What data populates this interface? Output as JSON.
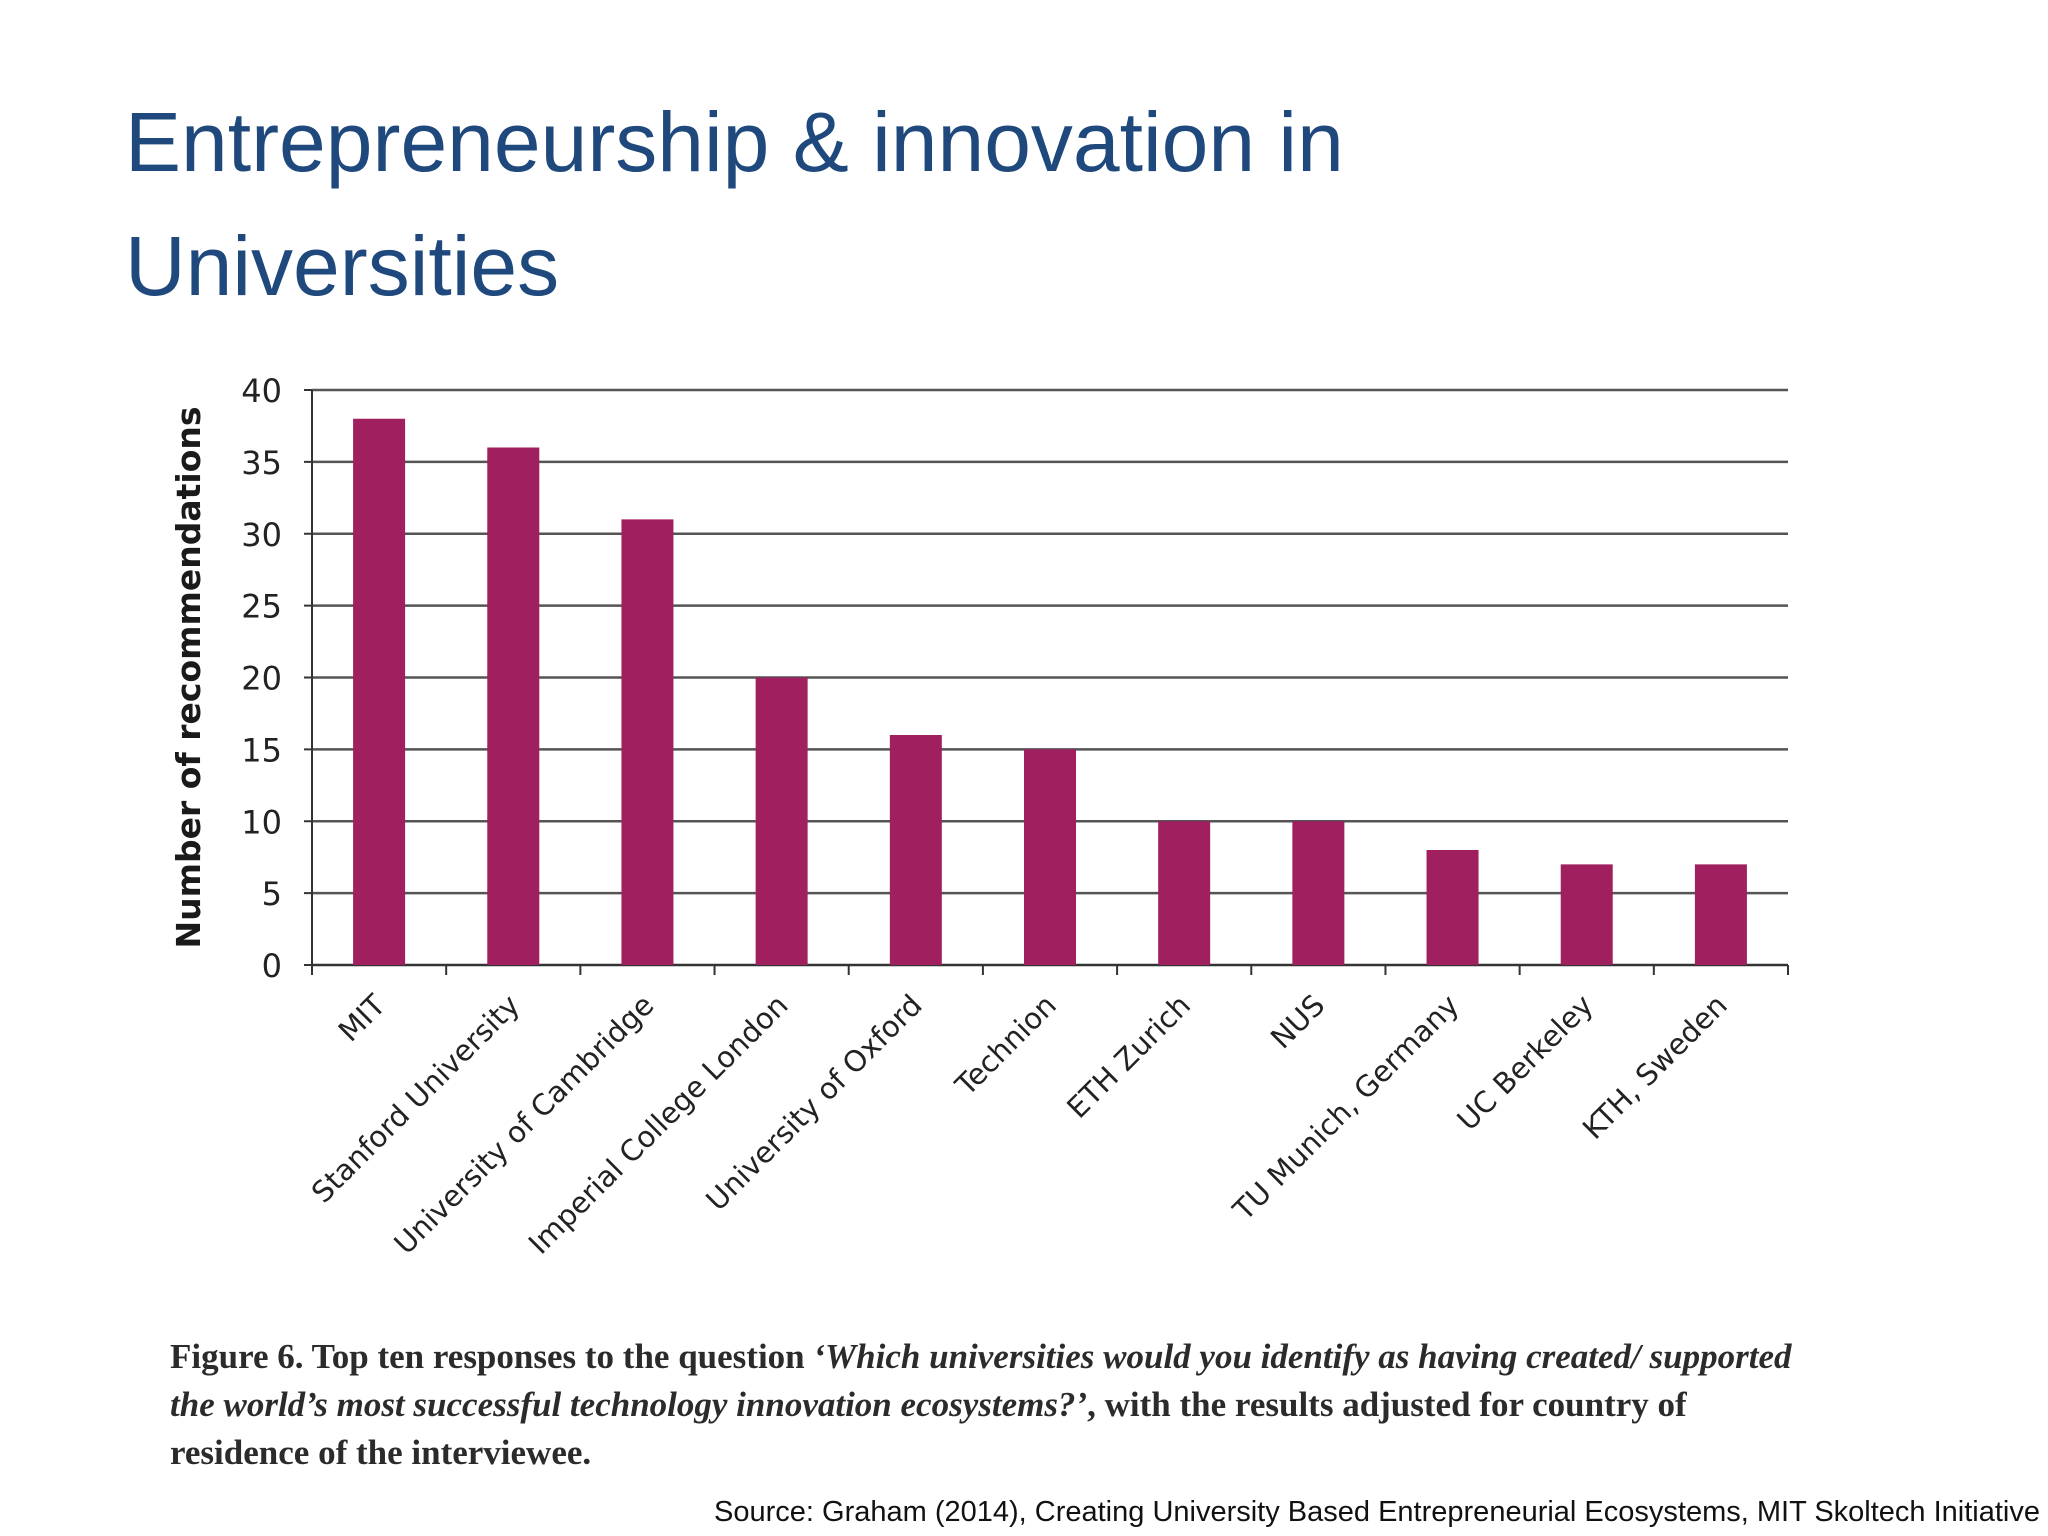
{
  "slide": {
    "title_line1": "Entrepreneurship & innovation in",
    "title_line2": "Universities"
  },
  "caption": {
    "lead": "Figure 6. Top ten responses to the question ",
    "question": "‘Which universities would you identify as having created/ supported the world’s most successful technology innovation ecosystems?’",
    "tail": ", with the results adjusted for country of residence of the interviewee."
  },
  "source": "Source: Graham (2014), Creating University Based Entrepreneurial Ecosystems, MIT Skoltech Initiative",
  "colors": {
    "title": "#1f497d",
    "bar": "#a01f5e",
    "gridline": "#555555"
  },
  "chart_data": {
    "type": "bar",
    "ylabel": "Number of recommendations",
    "xlabel": "",
    "ylim": [
      0,
      40
    ],
    "yticks": [
      0,
      5,
      10,
      15,
      20,
      25,
      30,
      35,
      40
    ],
    "grid": true,
    "categories": [
      "MIT",
      "Stanford University",
      "University of Cambridge",
      "Imperial College London",
      "University of Oxford",
      "Technion",
      "ETH Zurich",
      "NUS",
      "TU Munich, Germany",
      "UC Berkeley",
      "KTH, Sweden"
    ],
    "values": [
      38,
      36,
      31,
      20,
      16,
      15,
      10,
      10,
      8,
      7,
      7
    ]
  }
}
